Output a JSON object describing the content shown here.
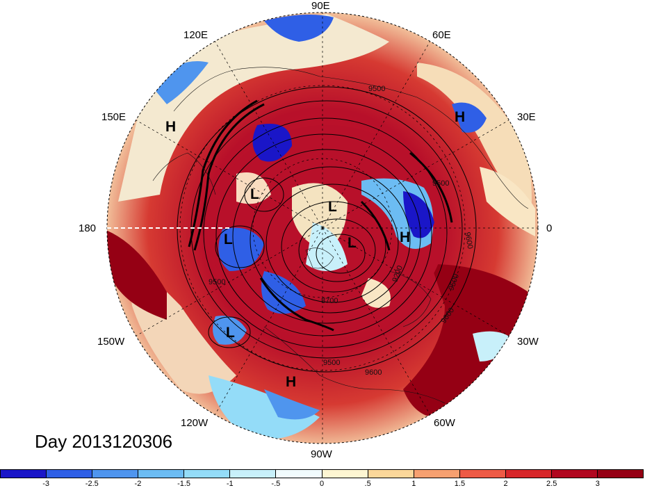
{
  "map": {
    "day_label": "Day 2013120306",
    "lon_labels": [
      {
        "id": "90e",
        "text": "90E"
      },
      {
        "id": "60e",
        "text": "60E"
      },
      {
        "id": "30e",
        "text": "30E"
      },
      {
        "id": "0",
        "text": "0"
      },
      {
        "id": "30w",
        "text": "30W"
      },
      {
        "id": "60w",
        "text": "60W"
      },
      {
        "id": "90w",
        "text": "90W"
      },
      {
        "id": "120w",
        "text": "120W"
      },
      {
        "id": "150w",
        "text": "150W"
      },
      {
        "id": "180",
        "text": "180"
      },
      {
        "id": "150e",
        "text": "150E"
      },
      {
        "id": "120e",
        "text": "120E"
      }
    ],
    "pressure_centers": [
      "H",
      "H",
      "L",
      "L",
      "L",
      "L",
      "H",
      "L",
      "H"
    ],
    "contour_labels": [
      "9500",
      "9500",
      "9600",
      "9500",
      "9500",
      "9200",
      "9600",
      "8700",
      "9500",
      "9600"
    ]
  },
  "colorbar": {
    "ticks": [
      "-3",
      "-2.5",
      "-2",
      "-1.5",
      "-1",
      "-.5",
      "0",
      ".5",
      "1",
      "1.5",
      "2",
      "2.5",
      "3"
    ],
    "colors": [
      "#1a16c8",
      "#2f5fe6",
      "#4f95ee",
      "#6cbcf3",
      "#94dcf8",
      "#c8f0fa",
      "#f1fbfd",
      "#fdf6d2",
      "#fbd79a",
      "#f6a070",
      "#ee5a45",
      "#d7262a",
      "#b1071f",
      "#950014"
    ]
  }
}
